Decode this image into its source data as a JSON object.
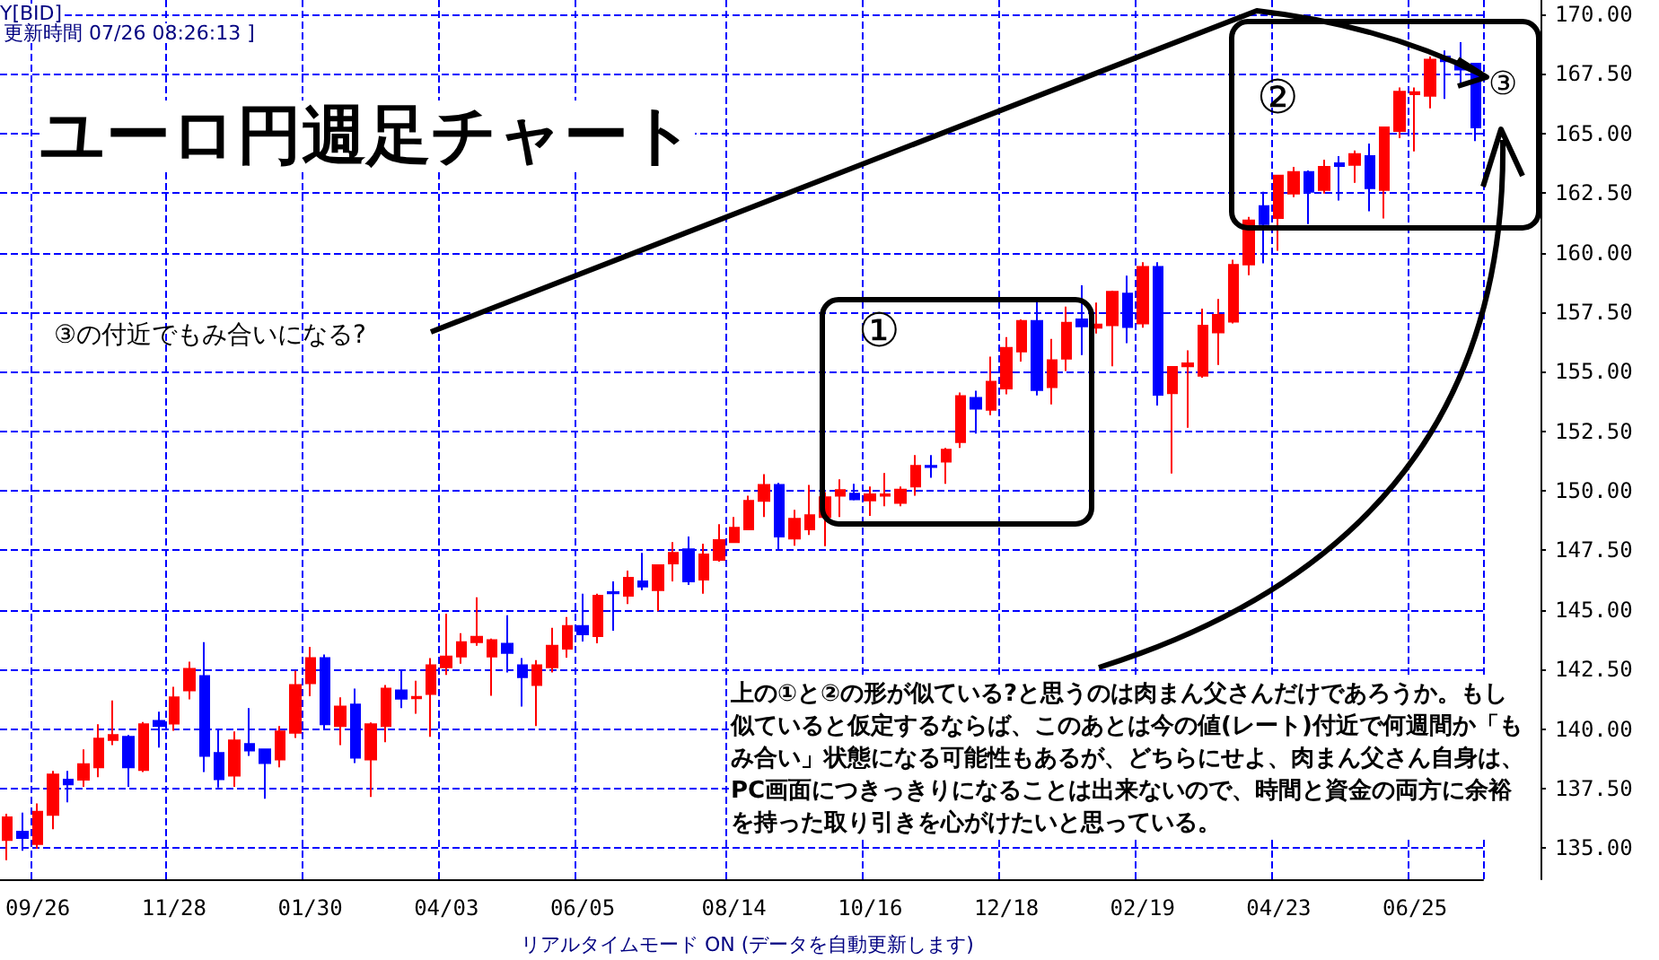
{
  "chart_data": {
    "type": "candlestick",
    "title": "ユーロ円週足チャート",
    "annotations": [
      "①",
      "②",
      "③",
      "③の付近でもみ合いになる?",
      "上の①と②の形が似ている?と思うのは肉まん父さんだけであろうか。もし似ていると仮定するならば、このあとは今の値(レート)付近で何週間か「もみ合い」状態になる可能性もあるが、どちらにせよ、肉まん父さん自身は、PC画面につきっきりになることは出来ないので、時間と資金の両方に余裕を持った取り引きを心がけたいと思っている。",
      "Y[BID]",
      "更新時間 07/26 08:26:13 ]",
      "リアルタイムモード ON (データを自動更新します)"
    ],
    "categories": [
      null,
      null,
      "09/26",
      null,
      null,
      null,
      null,
      null,
      null,
      null,
      null,
      "11/28",
      null,
      null,
      null,
      null,
      null,
      null,
      null,
      null,
      "01/30",
      null,
      null,
      null,
      null,
      null,
      null,
      null,
      null,
      "04/03",
      null,
      null,
      null,
      null,
      null,
      null,
      null,
      null,
      "06/05",
      null,
      null,
      null,
      null,
      null,
      null,
      null,
      null,
      null,
      "08/14",
      null,
      null,
      null,
      null,
      null,
      null,
      null,
      null,
      "10/16",
      null,
      null,
      null,
      null,
      null,
      null,
      null,
      null,
      "12/18",
      null,
      null,
      null,
      null,
      null,
      null,
      null,
      null,
      "02/19",
      null,
      null,
      null,
      null,
      null,
      null,
      null,
      null,
      "04/23",
      null,
      null,
      null,
      null,
      null,
      null,
      null,
      null,
      "06/25",
      null,
      null,
      null,
      null
    ],
    "ohlc": [
      [
        135.35,
        136.45,
        134.5,
        136.3
      ],
      [
        135.7,
        136.5,
        134.9,
        135.43
      ],
      [
        135.18,
        136.88,
        134.98,
        136.53
      ],
      [
        136.4,
        138.25,
        135.8,
        138.1
      ],
      [
        137.88,
        138.25,
        136.93,
        137.68
      ],
      [
        137.88,
        139.15,
        137.58,
        138.53
      ],
      [
        138.4,
        140.2,
        137.98,
        139.6
      ],
      [
        139.55,
        141.2,
        139.33,
        139.75
      ],
      [
        139.68,
        139.75,
        137.58,
        138.4
      ],
      [
        138.28,
        140.3,
        138.2,
        140.2
      ],
      [
        140.35,
        140.73,
        139.23,
        140.13
      ],
      [
        140.23,
        141.78,
        139.93,
        141.33
      ],
      [
        141.63,
        142.83,
        141.25,
        142.53
      ],
      [
        142.23,
        143.65,
        138.2,
        138.88
      ],
      [
        139.0,
        140.03,
        137.55,
        137.9
      ],
      [
        138.05,
        139.9,
        137.58,
        139.53
      ],
      [
        139.38,
        140.88,
        138.88,
        139.1
      ],
      [
        139.15,
        139.15,
        137.08,
        138.58
      ],
      [
        138.73,
        140.13,
        138.4,
        139.9
      ],
      [
        139.85,
        142.45,
        139.63,
        141.85
      ],
      [
        141.93,
        143.45,
        141.38,
        142.98
      ],
      [
        142.98,
        143.13,
        139.95,
        140.2
      ],
      [
        140.13,
        141.33,
        139.33,
        140.95
      ],
      [
        141.03,
        141.7,
        138.58,
        138.8
      ],
      [
        138.73,
        140.28,
        137.15,
        140.2
      ],
      [
        140.13,
        141.85,
        139.45,
        141.7
      ],
      [
        141.63,
        142.45,
        140.88,
        141.28
      ],
      [
        141.3,
        142.03,
        140.65,
        141.35
      ],
      [
        141.48,
        142.98,
        139.68,
        142.68
      ],
      [
        142.6,
        144.85,
        142.28,
        143.05
      ],
      [
        143.05,
        144.03,
        142.75,
        143.65
      ],
      [
        143.65,
        145.53,
        143.5,
        143.88
      ],
      [
        143.05,
        143.8,
        141.4,
        143.73
      ],
      [
        143.58,
        144.78,
        142.38,
        143.2
      ],
      [
        142.68,
        142.98,
        140.95,
        142.18
      ],
      [
        141.85,
        142.9,
        140.13,
        142.68
      ],
      [
        142.6,
        144.25,
        142.38,
        143.5
      ],
      [
        143.38,
        144.7,
        143.0,
        144.33
      ],
      [
        144.33,
        145.68,
        143.68,
        143.98
      ],
      [
        143.9,
        145.68,
        143.6,
        145.6
      ],
      [
        145.75,
        146.2,
        144.13,
        145.7
      ],
      [
        145.6,
        146.65,
        145.25,
        146.35
      ],
      [
        146.2,
        147.4,
        145.83,
        145.98
      ],
      [
        145.83,
        146.88,
        144.95,
        146.88
      ],
      [
        146.95,
        147.85,
        146.2,
        147.4
      ],
      [
        147.55,
        148.08,
        146.05,
        146.2
      ],
      [
        146.28,
        147.78,
        145.68,
        147.33
      ],
      [
        147.1,
        148.6,
        147.03,
        147.93
      ],
      [
        147.85,
        148.9,
        147.85,
        148.45
      ],
      [
        148.38,
        149.8,
        148.38,
        149.58
      ],
      [
        149.58,
        150.7,
        148.9,
        150.25
      ],
      [
        150.25,
        150.33,
        147.55,
        148.08
      ],
      [
        148.0,
        149.2,
        147.7,
        148.83
      ],
      [
        148.38,
        150.25,
        148.15,
        148.98
      ],
      [
        148.9,
        149.95,
        147.68,
        149.73
      ],
      [
        149.8,
        150.48,
        148.9,
        150.03
      ],
      [
        149.88,
        150.3,
        149.6,
        149.65
      ],
      [
        149.6,
        150.18,
        148.95,
        149.85
      ],
      [
        149.8,
        150.75,
        149.35,
        149.85
      ],
      [
        149.5,
        150.18,
        149.35,
        150.05
      ],
      [
        150.18,
        151.5,
        149.8,
        151.05
      ],
      [
        151.05,
        151.5,
        150.55,
        151.0
      ],
      [
        151.23,
        151.8,
        150.3,
        151.73
      ],
      [
        152.05,
        154.13,
        151.8,
        153.98
      ],
      [
        153.9,
        154.2,
        152.4,
        153.45
      ],
      [
        153.4,
        155.63,
        153.18,
        154.58
      ],
      [
        154.3,
        156.45,
        154.05,
        156.0
      ],
      [
        155.85,
        157.2,
        155.43,
        157.13
      ],
      [
        157.13,
        157.95,
        154.0,
        154.23
      ],
      [
        154.35,
        156.38,
        153.63,
        155.48
      ],
      [
        155.55,
        157.73,
        155.03,
        157.05
      ],
      [
        157.2,
        158.63,
        155.7,
        156.9
      ],
      [
        156.85,
        157.9,
        156.6,
        156.98
      ],
      [
        156.95,
        158.4,
        155.23,
        158.35
      ],
      [
        158.28,
        159.03,
        156.2,
        156.88
      ],
      [
        157.03,
        159.6,
        156.85,
        159.4
      ],
      [
        159.4,
        159.6,
        153.58,
        154.03
      ],
      [
        154.1,
        155.2,
        150.73,
        155.2
      ],
      [
        155.23,
        155.9,
        152.65,
        155.35
      ],
      [
        154.83,
        157.65,
        154.75,
        156.93
      ],
      [
        156.65,
        158.05,
        155.28,
        157.38
      ],
      [
        157.1,
        159.7,
        157.03,
        159.48
      ],
      [
        159.5,
        161.5,
        159.05,
        161.35
      ],
      [
        161.95,
        162.55,
        159.55,
        161.2
      ],
      [
        161.45,
        163.23,
        160.08,
        163.23
      ],
      [
        162.48,
        163.6,
        162.33,
        163.38
      ],
      [
        163.38,
        163.45,
        161.2,
        162.55
      ],
      [
        162.63,
        163.9,
        162.48,
        163.6
      ],
      [
        163.75,
        164.05,
        162.18,
        163.63
      ],
      [
        163.68,
        164.28,
        162.93,
        164.13
      ],
      [
        164.05,
        164.58,
        161.73,
        162.7
      ],
      [
        162.63,
        165.25,
        161.43,
        165.25
      ],
      [
        165.1,
        166.93,
        164.8,
        166.75
      ],
      [
        166.65,
        166.93,
        164.25,
        166.73
      ],
      [
        166.58,
        168.23,
        166.05,
        168.1
      ],
      [
        168.23,
        168.48,
        166.45,
        168.03
      ],
      [
        167.93,
        168.83,
        167.13,
        167.68
      ],
      [
        167.93,
        167.93,
        164.68,
        165.25
      ]
    ],
    "colors": [
      "#ff0000",
      "#0000ff",
      "#ff0000",
      "#ff0000",
      "#0000ff",
      "#ff0000",
      "#ff0000",
      "#ff0000",
      "#0000ff",
      "#ff0000",
      "#0000ff",
      "#ff0000",
      "#ff0000",
      "#0000ff",
      "#0000ff",
      "#ff0000",
      "#0000ff",
      "#0000ff",
      "#ff0000",
      "#ff0000",
      "#ff0000",
      "#0000ff",
      "#ff0000",
      "#0000ff",
      "#ff0000",
      "#ff0000",
      "#0000ff",
      "#ff0000",
      "#ff0000",
      "#ff0000",
      "#ff0000",
      "#ff0000",
      "#ff0000",
      "#0000ff",
      "#0000ff",
      "#ff0000",
      "#ff0000",
      "#ff0000",
      "#0000ff",
      "#ff0000",
      "#0000ff",
      "#ff0000",
      "#0000ff",
      "#ff0000",
      "#ff0000",
      "#0000ff",
      "#ff0000",
      "#ff0000",
      "#ff0000",
      "#ff0000",
      "#ff0000",
      "#0000ff",
      "#ff0000",
      "#ff0000",
      "#ff0000",
      "#ff0000",
      "#0000ff",
      "#ff0000",
      "#ff0000",
      "#ff0000",
      "#ff0000",
      "#0000ff",
      "#ff0000",
      "#ff0000",
      "#0000ff",
      "#ff0000",
      "#ff0000",
      "#ff0000",
      "#0000ff",
      "#ff0000",
      "#ff0000",
      "#0000ff",
      "#ff0000",
      "#ff0000",
      "#0000ff",
      "#ff0000",
      "#0000ff",
      "#ff0000",
      "#ff0000",
      "#ff0000",
      "#ff0000",
      "#ff0000",
      "#ff0000",
      "#0000ff",
      "#ff0000",
      "#ff0000",
      "#0000ff",
      "#ff0000",
      "#0000ff",
      "#ff0000",
      "#0000ff",
      "#ff0000",
      "#ff0000",
      "#ff0000",
      "#ff0000",
      "#0000ff",
      "#0000ff",
      "#0000ff"
    ],
    "ylim": [
      133.7,
      170.6
    ],
    "yticks": [
      {
        "value": 135,
        "label": "135.00"
      },
      {
        "value": 137.5,
        "label": "137.50"
      },
      {
        "value": 140,
        "label": "140.00"
      },
      {
        "value": 142.5,
        "label": "142.50"
      },
      {
        "value": 145,
        "label": "145.00"
      },
      {
        "value": 147.5,
        "label": "147.50"
      },
      {
        "value": 150,
        "label": "150.00"
      },
      {
        "value": 152.5,
        "label": "152.50"
      },
      {
        "value": 155,
        "label": "155.00"
      },
      {
        "value": 157.5,
        "label": "157.50"
      },
      {
        "value": 160,
        "label": "160.00"
      },
      {
        "value": 162.5,
        "label": "162.50"
      },
      {
        "value": 165,
        "label": "165.00"
      },
      {
        "value": 167.5,
        "label": "167.50"
      },
      {
        "value": 170,
        "label": "170.00"
      }
    ],
    "grid": true
  }
}
